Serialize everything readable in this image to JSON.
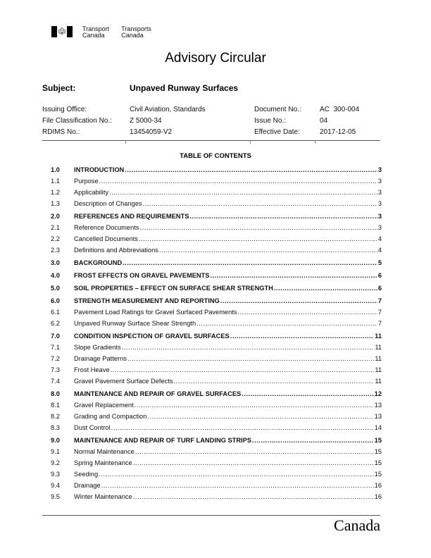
{
  "header": {
    "dept_en_1": "Transport",
    "dept_en_2": "Canada",
    "dept_fr_1": "Transports",
    "dept_fr_2": "Canada",
    "flag_icon": "maple-leaf"
  },
  "title": "Advisory Circular",
  "subject": {
    "label": "Subject:",
    "value": "Unpaved Runway Surfaces"
  },
  "meta": {
    "issuing_office_label": "Issuing Office:",
    "issuing_office": "Civil Aviation, Standards",
    "file_class_label": "File Classification No.:",
    "file_class": "Z 5000-34",
    "rdims_label": "RDIMS No.:",
    "rdims": "13454059-V2",
    "doc_no_label": "Document No.:",
    "doc_no": "AC  300-004",
    "issue_label": "Issue No.:",
    "issue": "04",
    "date_label": "Effective Date:",
    "date": "2017-12-05"
  },
  "toc": {
    "title": "TABLE OF CONTENTS",
    "entries": [
      {
        "num": "1.0",
        "text": "INTRODUCTION",
        "page": "3",
        "major": true
      },
      {
        "num": "1.1",
        "text": "Purpose",
        "page": "3"
      },
      {
        "num": "1.2",
        "text": "Applicability",
        "page": "3"
      },
      {
        "num": "1.3",
        "text": "Description of Changes",
        "page": "3"
      },
      {
        "num": "2.0",
        "text": "REFERENCES AND REQUIREMENTS",
        "page": "3",
        "major": true
      },
      {
        "num": "2.1",
        "text": "Reference Documents",
        "page": "3"
      },
      {
        "num": "2.2",
        "text": "Cancelled Documents",
        "page": "4"
      },
      {
        "num": "2.3",
        "text": "Definitions and Abbreviations",
        "page": "4"
      },
      {
        "num": "3.0",
        "text": "BACKGROUND",
        "page": "5",
        "major": true
      },
      {
        "num": "4.0",
        "text": "FROST EFFECTS ON GRAVEL PAVEMENTS",
        "page": "6",
        "major": true
      },
      {
        "num": "5.0",
        "text": "SOIL PROPERTIES – EFFECT ON SURFACE SHEAR STRENGTH",
        "page": "6",
        "major": true
      },
      {
        "num": "6.0",
        "text": "STRENGTH MEASUREMENT AND REPORTING",
        "page": "7",
        "major": true
      },
      {
        "num": "6.1",
        "text": "Pavement Load Ratings for Gravel Surfaced Pavements",
        "page": "7"
      },
      {
        "num": "6.2",
        "text": "Unpaved Runway Surface Shear Strength",
        "page": "7"
      },
      {
        "num": "7.0",
        "text": "CONDITION INSPECTION OF GRAVEL SURFACES",
        "page": "11",
        "major": true
      },
      {
        "num": "7.1",
        "text": "Slope Gradients",
        "page": "11"
      },
      {
        "num": "7.2",
        "text": "Drainage Patterns",
        "page": "11"
      },
      {
        "num": "7.3",
        "text": "Frost Heave",
        "page": "11"
      },
      {
        "num": "7.4",
        "text": "Gravel Pavement Surface Defects",
        "page": "11"
      },
      {
        "num": "8.0",
        "text": "MAINTENANCE AND REPAIR OF GRAVEL SURFACES",
        "page": "12",
        "major": true
      },
      {
        "num": "8.1",
        "text": "Gravel Replacement",
        "page": "13"
      },
      {
        "num": "8.2",
        "text": "Grading and Compaction",
        "page": "13"
      },
      {
        "num": "8.3",
        "text": "Dust Control",
        "page": "14"
      },
      {
        "num": "9.0",
        "text": "MAINTENANCE AND REPAIR OF TURF LANDING STRIPS",
        "page": "15",
        "major": true
      },
      {
        "num": "9.1",
        "text": "Normal Maintenance",
        "page": "15"
      },
      {
        "num": "9.2",
        "text": "Spring Maintenance",
        "page": "15"
      },
      {
        "num": "9.3",
        "text": "Seeding",
        "page": "15"
      },
      {
        "num": "9.4",
        "text": "Drainage",
        "page": "16"
      },
      {
        "num": "9.5",
        "text": "Winter Maintenance",
        "page": "16"
      }
    ]
  },
  "footer": {
    "wordmark": "Canada"
  }
}
